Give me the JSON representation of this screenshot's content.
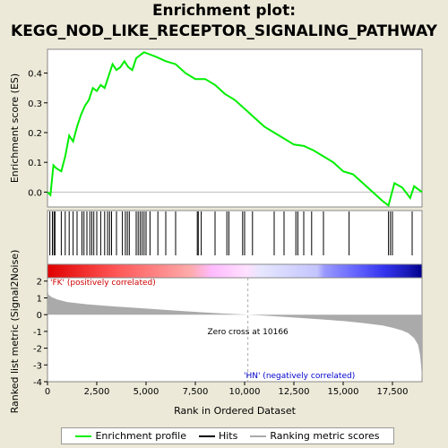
{
  "title_line1": "Enrichment plot:",
  "title_line2": "KEGG_NOD_LIKE_RECEPTOR_SIGNALING_PATHWAY",
  "chart_data": {
    "type": "line",
    "top_panel": {
      "ylabel": "Enrichment score (ES)",
      "ylim": [
        -0.05,
        0.48
      ],
      "yticks": [
        "0.0",
        "0.1",
        "0.2",
        "0.3",
        "0.4"
      ],
      "ytick_values": [
        0.0,
        0.1,
        0.2,
        0.3,
        0.4
      ],
      "series": [
        {
          "name": "Enrichment profile",
          "color": "#00ee00",
          "x": [
            0,
            150,
            300,
            450,
            700,
            900,
            1100,
            1300,
            1500,
            1700,
            1900,
            2100,
            2300,
            2500,
            2700,
            2900,
            3100,
            3300,
            3500,
            3700,
            3900,
            4100,
            4300,
            4500,
            4700,
            4900,
            5100,
            5500,
            6000,
            6500,
            7000,
            7500,
            8000,
            8500,
            9000,
            9500,
            10000,
            10500,
            11000,
            11500,
            12000,
            12500,
            13000,
            13500,
            14000,
            14500,
            15000,
            15500,
            16000,
            16500,
            17000,
            17300,
            17400,
            17600,
            18000,
            18400,
            18600,
            19000
          ],
          "y": [
            0.0,
            -0.01,
            0.09,
            0.08,
            0.07,
            0.12,
            0.19,
            0.17,
            0.22,
            0.26,
            0.29,
            0.31,
            0.35,
            0.34,
            0.36,
            0.35,
            0.39,
            0.43,
            0.41,
            0.42,
            0.44,
            0.42,
            0.41,
            0.45,
            0.46,
            0.47,
            0.465,
            0.455,
            0.44,
            0.43,
            0.4,
            0.38,
            0.38,
            0.36,
            0.33,
            0.31,
            0.28,
            0.25,
            0.22,
            0.2,
            0.18,
            0.16,
            0.155,
            0.14,
            0.12,
            0.1,
            0.07,
            0.06,
            0.03,
            0.0,
            -0.03,
            -0.045,
            -0.02,
            0.03,
            0.015,
            -0.02,
            0.02,
            0.0
          ]
        }
      ]
    },
    "hits": [
      120,
      250,
      330,
      380,
      700,
      900,
      1100,
      1300,
      1500,
      1750,
      1850,
      2000,
      2150,
      2250,
      2350,
      2500,
      2700,
      2900,
      3050,
      3150,
      3250,
      3500,
      3800,
      3950,
      4050,
      4150,
      4500,
      4600,
      4700,
      4800,
      4900,
      5000,
      5200,
      5600,
      6000,
      6500,
      7600,
      7650,
      7800,
      8500,
      9100,
      9200,
      9900,
      10000,
      10400,
      11500,
      12000,
      12600,
      12700,
      13000,
      13400,
      14000,
      15300,
      17300,
      17400,
      17500,
      18500
    ],
    "bottom_panel": {
      "ylabel": "Ranked list metric (Signal2Noise)",
      "xlabel": "Rank in Ordered Dataset",
      "ylim": [
        -4,
        2.2
      ],
      "yticks": [
        "2",
        "1",
        "0",
        "-1",
        "-2",
        "-3",
        "-4"
      ],
      "ytick_values": [
        2,
        1,
        0,
        -1,
        -2,
        -3,
        -4
      ],
      "xticks": [
        "0",
        "2,500",
        "5,000",
        "7,500",
        "10,000",
        "12,500",
        "15,000",
        "17,500"
      ],
      "xtick_values": [
        0,
        2500,
        5000,
        7500,
        10000,
        12500,
        15000,
        17500
      ],
      "xlim": [
        0,
        19000
      ],
      "series": [
        {
          "name": "Ranking metric scores",
          "color": "#aaaaaa",
          "x": [
            0,
            50,
            200,
            500,
            1000,
            2000,
            3000,
            4000,
            5000,
            6000,
            7000,
            8000,
            9000,
            10000,
            10166,
            11000,
            12000,
            13000,
            14000,
            15000,
            16000,
            17000,
            17500,
            18000,
            18300,
            18600,
            18800,
            18900,
            18950,
            19000
          ],
          "y": [
            1.6,
            1.2,
            1.05,
            0.9,
            0.75,
            0.62,
            0.52,
            0.44,
            0.36,
            0.28,
            0.2,
            0.13,
            0.06,
            0.01,
            0.0,
            -0.06,
            -0.13,
            -0.21,
            -0.29,
            -0.38,
            -0.5,
            -0.65,
            -0.78,
            -0.95,
            -1.1,
            -1.4,
            -1.8,
            -2.4,
            -3.0,
            -3.9
          ]
        }
      ],
      "zero_cross_label": "Zero cross at 10166",
      "zero_cross_x": 10166,
      "pos_label": "'FK' (positively correlated)",
      "neg_label": "'HN' (negatively correlated)"
    },
    "legend": [
      {
        "name": "Enrichment profile",
        "color": "#00ee00"
      },
      {
        "name": "Hits",
        "color": "#000000"
      },
      {
        "name": "Ranking metric scores",
        "color": "#aaaaaa"
      }
    ]
  }
}
